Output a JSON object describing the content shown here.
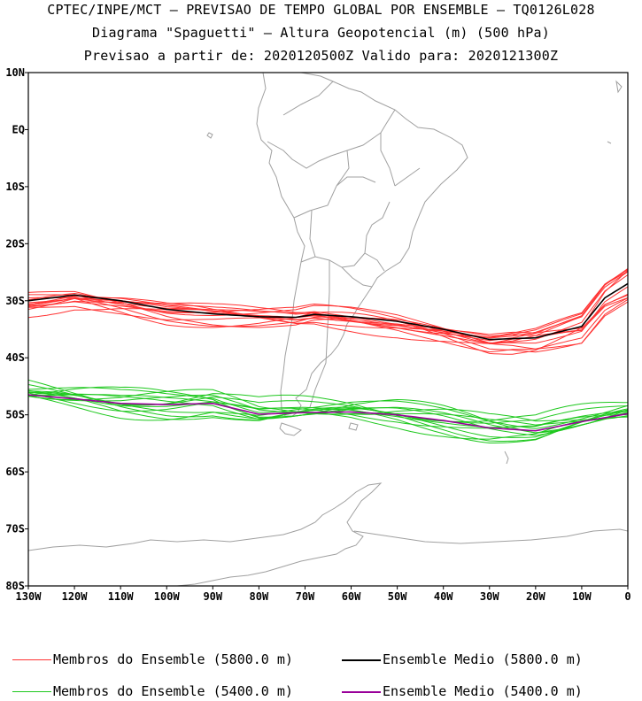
{
  "header": {
    "line1": "CPTEC/INPE/MCT – PREVISAO DE TEMPO GLOBAL POR ENSEMBLE – TQ0126L028",
    "line2": "Diagrama \"Spaguetti\" – Altura Geopotencial (m) (500 hPa)",
    "line3": "Previsao a partir de: 2020120500Z  Valido para: 2020121300Z"
  },
  "map": {
    "lat_labels": [
      "10N",
      "EQ",
      "10S",
      "20S",
      "30S",
      "40S",
      "50S",
      "60S",
      "70S",
      "80S"
    ],
    "lon_labels": [
      "130W",
      "120W",
      "110W",
      "100W",
      "90W",
      "80W",
      "70W",
      "60W",
      "50W",
      "40W",
      "30W",
      "20W",
      "10W",
      "0"
    ],
    "lat_range": [
      -80,
      10
    ],
    "lon_range": [
      -130,
      0
    ],
    "colors": {
      "members_5800": "#ff3333",
      "mean_5800": "#000000",
      "members_5400": "#1ec81e",
      "mean_5400": "#990099",
      "coast": "#a0a0a0"
    }
  },
  "chart_data": {
    "type": "line",
    "x_unit": "longitude",
    "y_unit": "latitude",
    "series": [
      {
        "name": "Ensemble Medio (5800.0 m)",
        "lon": [
          -130,
          -120,
          -110,
          -100,
          -90,
          -80,
          -72,
          -68,
          -60,
          -50,
          -40,
          -30,
          -20,
          -10,
          -5,
          0
        ],
        "lat": [
          -30.0,
          -29.0,
          -30.0,
          -31.5,
          -32.3,
          -32.8,
          -32.9,
          -32.4,
          -32.8,
          -33.6,
          -35.0,
          -36.8,
          -36.5,
          -34.5,
          -29.5,
          -27.0
        ]
      },
      {
        "name": "Ensemble Medio (5400.0 m)",
        "lon": [
          -130,
          -120,
          -110,
          -100,
          -90,
          -80,
          -70,
          -60,
          -50,
          -40,
          -30,
          -20,
          -10,
          0
        ],
        "lat": [
          -46.5,
          -47.2,
          -48.0,
          -48.2,
          -48.0,
          -49.9,
          -49.6,
          -49.5,
          -50.0,
          -51.0,
          -52.3,
          -52.8,
          -51.2,
          -49.8
        ]
      }
    ]
  },
  "legend": {
    "members_5800": "Membros do Ensemble (5800.0 m)",
    "mean_5800": "Ensemble Medio (5800.0 m)",
    "members_5400": "Membros do Ensemble (5400.0 m)",
    "mean_5400": "Ensemble Medio (5400.0 m)"
  }
}
